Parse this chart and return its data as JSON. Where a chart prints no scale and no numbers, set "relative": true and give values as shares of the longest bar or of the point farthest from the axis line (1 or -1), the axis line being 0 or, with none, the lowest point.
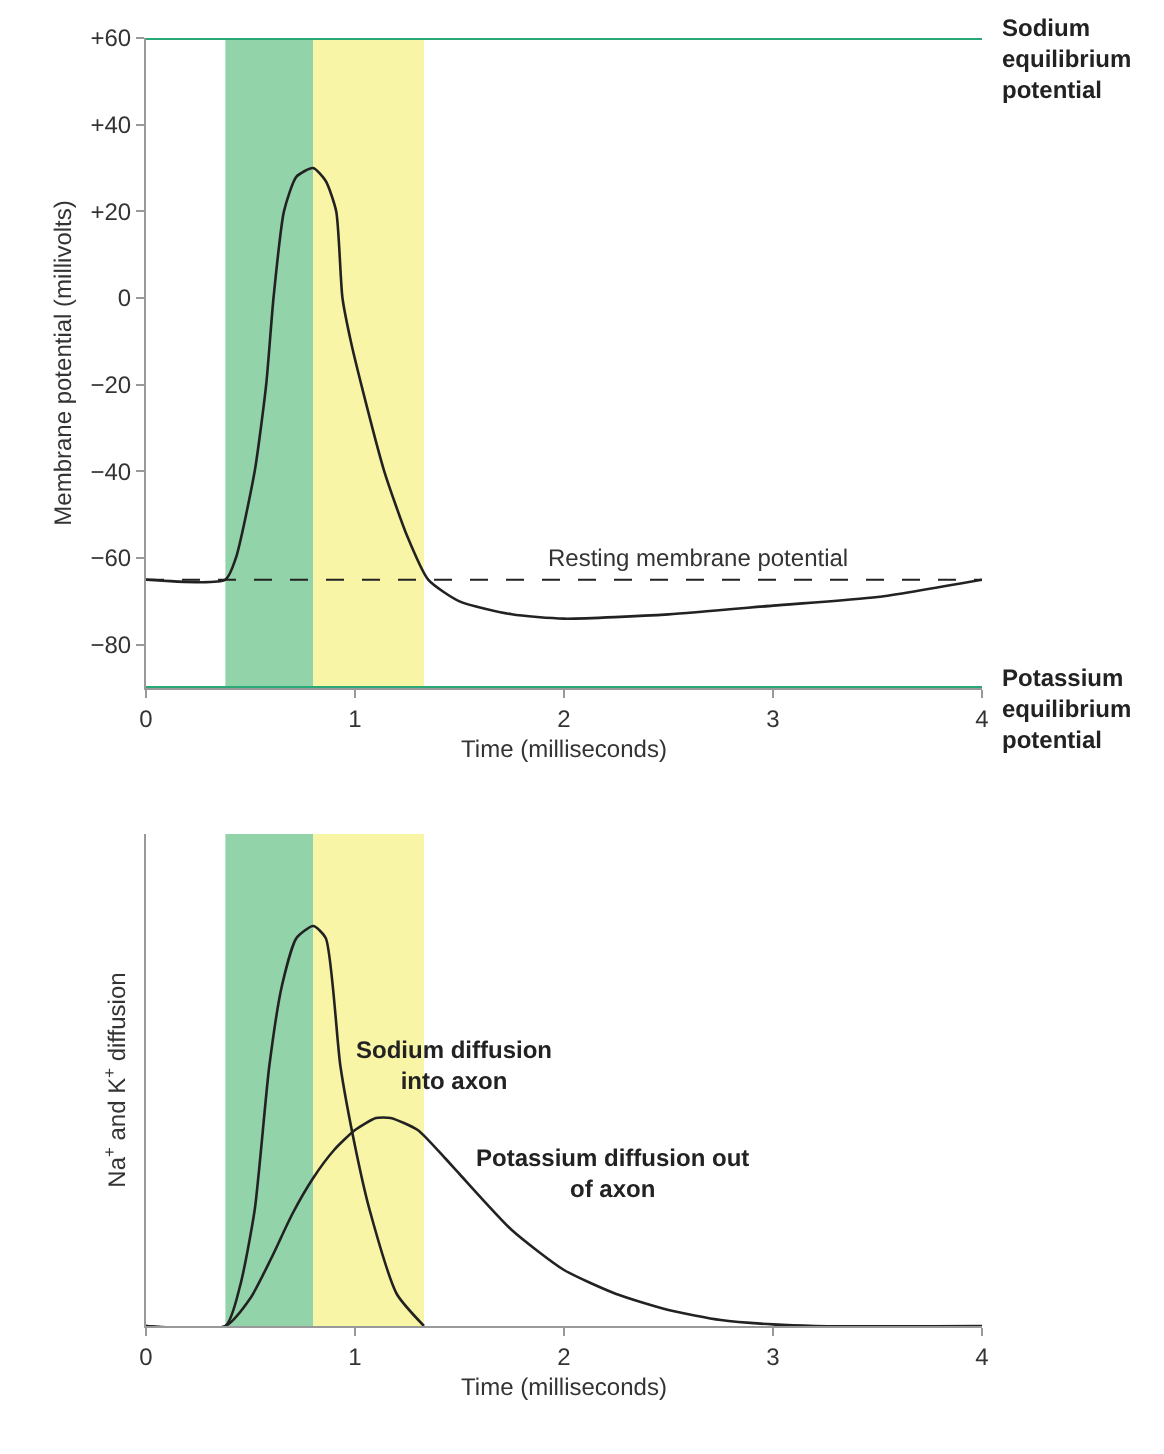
{
  "chart_data": [
    {
      "type": "line",
      "xlabel": "Time (milliseconds)",
      "ylabel": "Membrane potential (millivolts)",
      "xlim": [
        0,
        4
      ],
      "xticks": [
        0,
        1,
        2,
        3,
        4
      ],
      "ylim": [
        -90,
        60
      ],
      "yticks": [
        {
          "value": 60,
          "label": "+60"
        },
        {
          "value": 40,
          "label": "+40"
        },
        {
          "value": 20,
          "label": "+20"
        },
        0,
        {
          "value": -20,
          "label": "−20"
        },
        {
          "value": -40,
          "label": "−40"
        },
        {
          "value": -60,
          "label": "−60"
        },
        {
          "value": -80,
          "label": "−80"
        }
      ],
      "grid": false,
      "legend": false,
      "series": [
        {
          "color": "#222222",
          "x": [
            0,
            0.38,
            0.43,
            0.52,
            0.575,
            0.61,
            0.66,
            0.72,
            0.8,
            0.86,
            0.91,
            0.94,
            0.98,
            1.03,
            1.14,
            1.25,
            1.35,
            1.5,
            1.75,
            2.0,
            2.5,
            3.0,
            3.5,
            4.0
          ],
          "values": [
            -65,
            -65,
            -60,
            -40,
            -20,
            0,
            20,
            28,
            30,
            27,
            20,
            0,
            -10,
            -20,
            -40,
            -55,
            -65,
            -70,
            -73,
            -74,
            -73,
            -71,
            -69,
            -65
          ]
        }
      ],
      "ref_lines": [
        {
          "axis": "y",
          "value": 60,
          "label": "Sodium equilibrium potential",
          "color": "#2aa877",
          "line_style": "solid"
        },
        {
          "axis": "y",
          "value": -90,
          "label": "Potassium equilibrium potential",
          "color": "#2aa877",
          "line_style": "solid"
        },
        {
          "axis": "y",
          "value": -65,
          "label": "Resting membrane potential",
          "color": "#222222",
          "line_style": "dashed"
        }
      ],
      "bands": [
        {
          "axis": "x",
          "from": 0.38,
          "to": 0.8,
          "color": "#93d3a9"
        },
        {
          "axis": "x",
          "from": 0.8,
          "to": 1.33,
          "color": "#f8f5a6"
        }
      ]
    },
    {
      "type": "line",
      "xlabel": "Time (milliseconds)",
      "ylabel": "Na$^{+}$ and K$^{+}$ diffusion",
      "xlim": [
        0,
        4
      ],
      "xticks": [
        0,
        1,
        2,
        3,
        4
      ],
      "relative": true,
      "tick_labels": "x",
      "grid": false,
      "legend": false,
      "series": [
        {
          "name": "Sodium diffusion into axon",
          "color": "#222222",
          "x": [
            0,
            0.38,
            0.45,
            0.52,
            0.59,
            0.65,
            0.72,
            0.8,
            0.86,
            0.93,
            1.0,
            1.07,
            1.2,
            1.33
          ],
          "values": [
            0,
            0,
            0.1,
            0.29,
            0.65,
            0.85,
            0.97,
            1,
            0.97,
            0.65,
            0.45,
            0.29,
            0.08,
            0
          ]
        },
        {
          "name": "Potassium diffusion out of axon",
          "color": "#222222",
          "x": [
            0,
            0.38,
            0.5,
            0.6,
            0.7,
            0.8,
            0.9,
            1.0,
            1.1,
            1.17,
            1.3,
            1.43,
            1.5,
            1.75,
            2.0,
            2.25,
            2.5,
            2.75,
            3.0,
            3.2,
            4.0
          ],
          "values": [
            0,
            0,
            0.07,
            0.17,
            0.28,
            0.37,
            0.44,
            0.49,
            0.52,
            0.52,
            0.49,
            0.42,
            0.38,
            0.24,
            0.14,
            0.08,
            0.04,
            0.015,
            0.004,
            0,
            0
          ]
        }
      ],
      "bands": [
        {
          "axis": "x",
          "from": 0.38,
          "to": 0.8,
          "color": "#93d3a9"
        },
        {
          "axis": "x",
          "from": 0.8,
          "to": 1.33,
          "color": "#f8f5a6"
        }
      ]
    }
  ]
}
